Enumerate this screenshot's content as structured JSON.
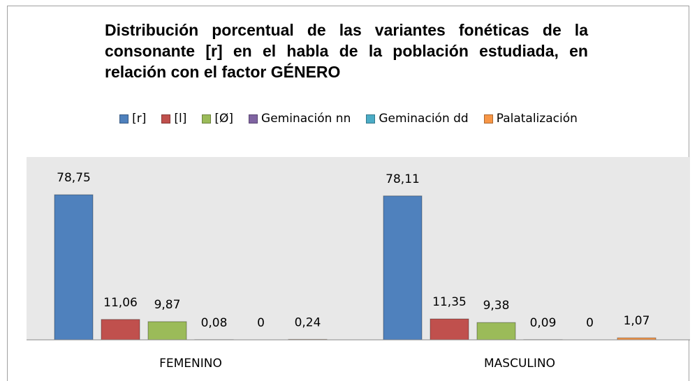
{
  "chart_data": {
    "type": "bar",
    "title": "Distribución porcentual de las variantes fonéticas de la consonante [r] en el habla de la población estudiada, en relación con el factor GÉNERO",
    "categories": [
      "FEMENINO",
      "MASCULINO"
    ],
    "series": [
      {
        "name": "[r]",
        "color": "#4f81bd",
        "values": [
          78.75,
          78.11
        ],
        "value_labels": [
          "78,75",
          "78,11"
        ]
      },
      {
        "name": "[l]",
        "color": "#c0504d",
        "values": [
          11.06,
          11.35
        ],
        "value_labels": [
          "11,06",
          "11,35"
        ]
      },
      {
        "name": "[Ø]",
        "color": "#9bbb59",
        "values": [
          9.87,
          9.38
        ],
        "value_labels": [
          "9,87",
          "9,38"
        ]
      },
      {
        "name": "Geminación nn",
        "color": "#8064a2",
        "values": [
          0.08,
          0.09
        ],
        "value_labels": [
          "0,08",
          "0,09"
        ]
      },
      {
        "name": "Geminación dd",
        "color": "#4bacc6",
        "values": [
          0,
          0
        ]
      },
      {
        "name": "Palatalización",
        "color": "#f79646",
        "values": [
          0.24,
          1.07
        ],
        "value_labels": [
          "0,24",
          "1,07"
        ]
      }
    ],
    "legend": "top"
  }
}
